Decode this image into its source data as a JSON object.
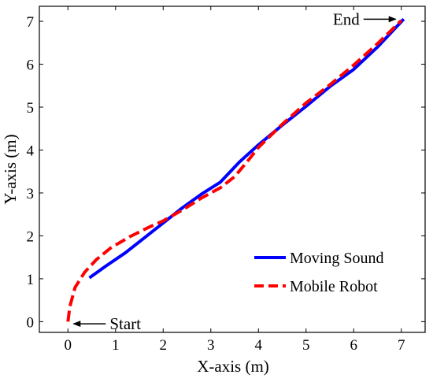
{
  "chart_data": {
    "type": "line",
    "xlabel": "X-axis (m)",
    "ylabel": "Y-axis (m)",
    "xlim": [
      -0.6,
      7.5
    ],
    "ylim": [
      -0.25,
      7.35
    ],
    "xticks": [
      0,
      1,
      2,
      3,
      4,
      5,
      6,
      7
    ],
    "yticks": [
      0,
      1,
      2,
      3,
      4,
      5,
      6,
      7
    ],
    "grid": false,
    "legend_position": "bottom-right",
    "series": [
      {
        "name": "Moving Sound",
        "color": "#0000ff",
        "style": "solid",
        "points": [
          [
            0.45,
            1.02
          ],
          [
            0.8,
            1.3
          ],
          [
            1.2,
            1.6
          ],
          [
            1.6,
            1.95
          ],
          [
            2.0,
            2.3
          ],
          [
            2.4,
            2.65
          ],
          [
            2.8,
            2.97
          ],
          [
            3.2,
            3.25
          ],
          [
            3.6,
            3.72
          ],
          [
            4.0,
            4.12
          ],
          [
            4.5,
            4.58
          ],
          [
            5.0,
            5.02
          ],
          [
            5.5,
            5.48
          ],
          [
            6.0,
            5.88
          ],
          [
            6.5,
            6.4
          ],
          [
            7.05,
            7.05
          ]
        ]
      },
      {
        "name": "Mobile Robot",
        "color": "#ff0000",
        "style": "dashed",
        "points": [
          [
            0.0,
            0.0
          ],
          [
            0.04,
            0.35
          ],
          [
            0.15,
            0.8
          ],
          [
            0.35,
            1.15
          ],
          [
            0.6,
            1.45
          ],
          [
            0.9,
            1.72
          ],
          [
            1.3,
            1.98
          ],
          [
            1.7,
            2.2
          ],
          [
            2.0,
            2.35
          ],
          [
            2.4,
            2.6
          ],
          [
            2.8,
            2.88
          ],
          [
            3.2,
            3.12
          ],
          [
            3.5,
            3.38
          ],
          [
            3.8,
            3.78
          ],
          [
            4.0,
            4.06
          ],
          [
            4.5,
            4.6
          ],
          [
            5.0,
            5.1
          ],
          [
            5.5,
            5.52
          ],
          [
            6.0,
            5.98
          ],
          [
            6.5,
            6.48
          ],
          [
            7.0,
            7.02
          ]
        ]
      }
    ],
    "annotations": [
      {
        "text": "Start",
        "arrow_to": [
          0.05,
          -0.05
        ],
        "side": "right"
      },
      {
        "text": "End",
        "arrow_to": [
          6.95,
          7.05
        ],
        "side": "left"
      }
    ]
  }
}
